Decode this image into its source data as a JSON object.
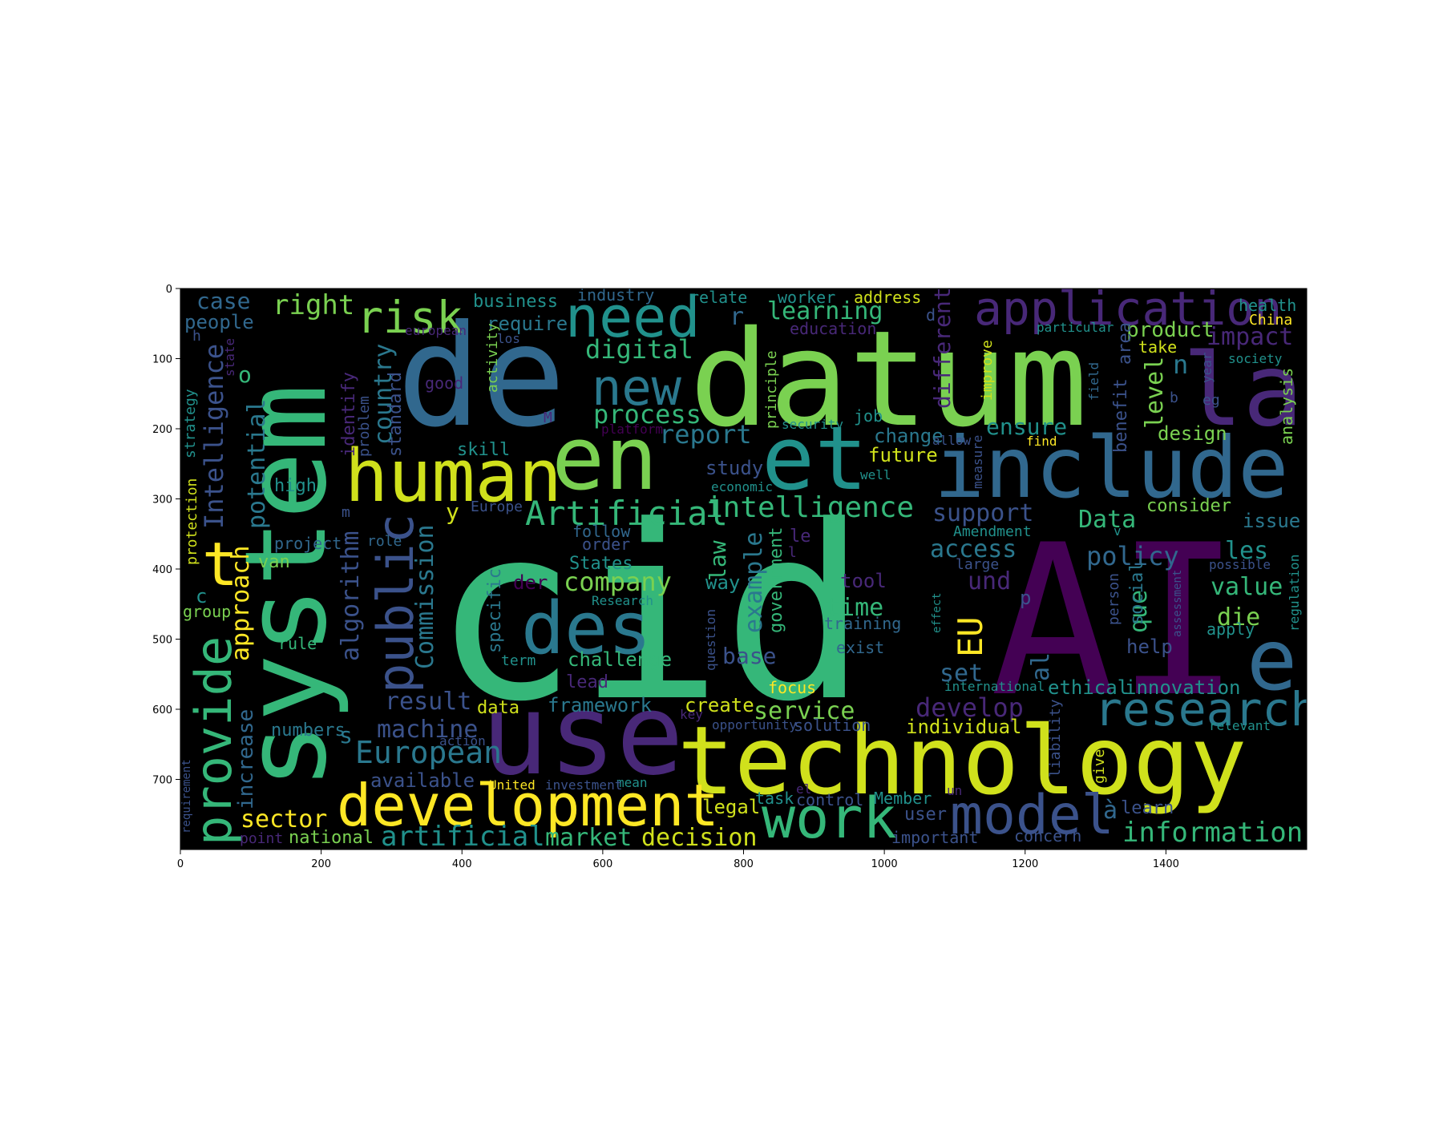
{
  "image": {
    "x_ticks": [
      "0",
      "200",
      "400",
      "600",
      "800",
      "1000",
      "1200",
      "1400"
    ],
    "y_ticks": [
      "0",
      "100",
      "200",
      "300",
      "400",
      "500",
      "600",
      "700"
    ],
    "background": "#000000",
    "palette": "viridis"
  },
  "words": [
    {
      "text": "cid",
      "color": "#35b779"
    },
    {
      "text": "AI",
      "color": "#440154"
    },
    {
      "text": "system",
      "color": "#35b779"
    },
    {
      "text": "de",
      "color": "#31688e"
    },
    {
      "text": "datum",
      "color": "#7ad151"
    },
    {
      "text": "use",
      "color": "#482878"
    },
    {
      "text": "technology",
      "color": "#d0e11c"
    },
    {
      "text": "en",
      "color": "#7ad151"
    },
    {
      "text": "et",
      "color": "#21918c"
    },
    {
      "text": "include",
      "color": "#31688e"
    },
    {
      "text": "human",
      "color": "#d0e11c"
    },
    {
      "text": "la",
      "color": "#482878"
    },
    {
      "text": "e",
      "color": "#31688e"
    },
    {
      "text": "development",
      "color": "#fde725"
    },
    {
      "text": "need",
      "color": "#21918c"
    },
    {
      "text": "application",
      "color": "#482878"
    },
    {
      "text": "new",
      "color": "#2a788e"
    },
    {
      "text": "work",
      "color": "#35b779"
    },
    {
      "text": "model",
      "color": "#3b528b"
    },
    {
      "text": "research",
      "color": "#2a788e"
    },
    {
      "text": "des",
      "color": "#2a788e"
    },
    {
      "text": "public",
      "color": "#3b528b"
    },
    {
      "text": "provide",
      "color": "#35b779"
    },
    {
      "text": "risk",
      "color": "#7ad151"
    },
    {
      "text": "EU",
      "color": "#fde725"
    },
    {
      "text": "Artificial",
      "color": "#35b779"
    },
    {
      "text": "intelligence",
      "color": "#35b779"
    },
    {
      "text": "European",
      "color": "#2a788e"
    },
    {
      "text": "artificial",
      "color": "#21918c"
    },
    {
      "text": "information",
      "color": "#35b779"
    },
    {
      "text": "Intelligence",
      "color": "#3b528b"
    },
    {
      "text": "right",
      "color": "#7ad151"
    },
    {
      "text": "digital",
      "color": "#35b779"
    },
    {
      "text": "process",
      "color": "#35b779"
    },
    {
      "text": "report",
      "color": "#2a788e"
    },
    {
      "text": "country",
      "color": "#2a788e"
    },
    {
      "text": "potential",
      "color": "#2a788e"
    },
    {
      "text": "approach",
      "color": "#fde725"
    },
    {
      "text": "algorithm",
      "color": "#3b528b"
    },
    {
      "text": "Commission",
      "color": "#2a788e"
    },
    {
      "text": "company",
      "color": "#7ad151"
    },
    {
      "text": "machine",
      "color": "#3b528b"
    },
    {
      "text": "sector",
      "color": "#fde725"
    },
    {
      "text": "market",
      "color": "#35b779"
    },
    {
      "text": "decision",
      "color": "#d0e11c"
    },
    {
      "text": "service",
      "color": "#7ad151"
    },
    {
      "text": "example",
      "color": "#2a788e"
    },
    {
      "text": "law",
      "color": "#35b779"
    },
    {
      "text": "develop",
      "color": "#482878"
    },
    {
      "text": "support",
      "color": "#3b528b"
    },
    {
      "text": "access",
      "color": "#2a788e"
    },
    {
      "text": "policy",
      "color": "#31688e"
    },
    {
      "text": "Data",
      "color": "#35b779"
    },
    {
      "text": "value",
      "color": "#35b779"
    },
    {
      "text": "ensure",
      "color": "#21918c"
    },
    {
      "text": "level",
      "color": "#7ad151"
    },
    {
      "text": "impact",
      "color": "#482878"
    },
    {
      "text": "product",
      "color": "#7ad151"
    },
    {
      "text": "different",
      "color": "#482878"
    },
    {
      "text": "learning",
      "color": "#35b779"
    },
    {
      "text": "case",
      "color": "#31688e"
    },
    {
      "text": "people",
      "color": "#31688e"
    },
    {
      "text": "business",
      "color": "#21918c"
    },
    {
      "text": "require",
      "color": "#2a788e"
    },
    {
      "text": "industry",
      "color": "#31688e"
    },
    {
      "text": "relate",
      "color": "#21918c"
    },
    {
      "text": "worker",
      "color": "#21918c"
    },
    {
      "text": "address",
      "color": "#d0e11c"
    },
    {
      "text": "health",
      "color": "#21918c"
    },
    {
      "text": "China",
      "color": "#fde725"
    },
    {
      "text": "result",
      "color": "#3b528b"
    },
    {
      "text": "data",
      "color": "#d0e11c"
    },
    {
      "text": "framework",
      "color": "#2a788e"
    },
    {
      "text": "create",
      "color": "#d0e11c"
    },
    {
      "text": "available",
      "color": "#3b528b"
    },
    {
      "text": "increase",
      "color": "#31688e"
    },
    {
      "text": "numbers",
      "color": "#2a788e"
    },
    {
      "text": "national",
      "color": "#7ad151"
    },
    {
      "text": "legal",
      "color": "#d0e11c"
    },
    {
      "text": "individual",
      "color": "#d0e11c"
    },
    {
      "text": "innovation",
      "color": "#21918c"
    },
    {
      "text": "ethical",
      "color": "#21918c"
    },
    {
      "text": "time",
      "color": "#35b779"
    },
    {
      "text": "base",
      "color": "#3b528b"
    },
    {
      "text": "challenge",
      "color": "#35b779"
    },
    {
      "text": "future",
      "color": "#d0e11c"
    },
    {
      "text": "design",
      "color": "#7ad151"
    },
    {
      "text": "study",
      "color": "#3b528b"
    },
    {
      "text": "change",
      "color": "#2a788e"
    },
    {
      "text": "les",
      "color": "#21918c"
    },
    {
      "text": "und",
      "color": "#482878"
    },
    {
      "text": "die",
      "color": "#7ad151"
    },
    {
      "text": "que",
      "color": "#35b779"
    },
    {
      "text": "issue",
      "color": "#2a788e"
    },
    {
      "text": "consider",
      "color": "#7ad151"
    },
    {
      "text": "analysis",
      "color": "#7ad151"
    },
    {
      "text": "benefit",
      "color": "#3b528b"
    },
    {
      "text": "area",
      "color": "#3b528b"
    },
    {
      "text": "skill",
      "color": "#21918c"
    },
    {
      "text": "high",
      "color": "#21918c"
    },
    {
      "text": "specific",
      "color": "#2a788e"
    },
    {
      "text": "van",
      "color": "#7ad151"
    },
    {
      "text": "States",
      "color": "#21918c"
    },
    {
      "text": "way",
      "color": "#21918c"
    },
    {
      "text": "government",
      "color": "#35b779"
    },
    {
      "text": "set",
      "color": "#31688e"
    },
    {
      "text": "help",
      "color": "#3b528b"
    },
    {
      "text": "learn",
      "color": "#3b528b"
    },
    {
      "text": "task",
      "color": "#21918c"
    },
    {
      "text": "user",
      "color": "#3b528b"
    },
    {
      "text": "control",
      "color": "#3b528b"
    },
    {
      "text": "Member",
      "color": "#21918c"
    },
    {
      "text": "important",
      "color": "#3b528b"
    },
    {
      "text": "concern",
      "color": "#3b528b"
    },
    {
      "text": "solution",
      "color": "#3b528b"
    },
    {
      "text": "focus",
      "color": "#fde725"
    },
    {
      "text": "lead",
      "color": "#482878"
    },
    {
      "text": "term",
      "color": "#21918c"
    },
    {
      "text": "der",
      "color": "#440154"
    },
    {
      "text": "tool",
      "color": "#482878"
    },
    {
      "text": "training",
      "color": "#31688e"
    },
    {
      "text": "exist",
      "color": "#31688e"
    },
    {
      "text": "social",
      "color": "#2a788e"
    },
    {
      "text": "person",
      "color": "#3b528b"
    },
    {
      "text": "apply",
      "color": "#21918c"
    },
    {
      "text": "regulation",
      "color": "#21918c"
    },
    {
      "text": "international",
      "color": "#21918c"
    },
    {
      "text": "liability",
      "color": "#3b528b"
    },
    {
      "text": "give",
      "color": "#d0e11c"
    },
    {
      "text": "standard",
      "color": "#3b528b"
    },
    {
      "text": "identify",
      "color": "#482878"
    },
    {
      "text": "problem",
      "color": "#3b528b"
    },
    {
      "text": "strategy",
      "color": "#21918c"
    },
    {
      "text": "protection",
      "color": "#d0e11c"
    },
    {
      "text": "requirement",
      "color": "#3b528b"
    },
    {
      "text": "project",
      "color": "#31688e"
    },
    {
      "text": "role",
      "color": "#31688e"
    },
    {
      "text": "rule",
      "color": "#35b779"
    },
    {
      "text": "group",
      "color": "#7ad151"
    },
    {
      "text": "point",
      "color": "#482878"
    },
    {
      "text": "action",
      "color": "#3b528b"
    },
    {
      "text": "key",
      "color": "#482878"
    },
    {
      "text": "opportunity",
      "color": "#3b528b"
    },
    {
      "text": "mean",
      "color": "#21918c"
    },
    {
      "text": "investment",
      "color": "#3b528b"
    },
    {
      "text": "United",
      "color": "#fde725"
    },
    {
      "text": "Europe",
      "color": "#3b528b"
    },
    {
      "text": "order",
      "color": "#3b528b"
    },
    {
      "text": "follow",
      "color": "#31688e"
    },
    {
      "text": "Research",
      "color": "#21918c"
    },
    {
      "text": "question",
      "color": "#3b528b"
    },
    {
      "text": "Amendment",
      "color": "#21918c"
    },
    {
      "text": "large",
      "color": "#3b528b"
    },
    {
      "text": "possible",
      "color": "#3b528b"
    },
    {
      "text": "assessment",
      "color": "#3b528b"
    },
    {
      "text": "effect",
      "color": "#21918c"
    },
    {
      "text": "measure",
      "color": "#3b528b"
    },
    {
      "text": "allow",
      "color": "#3b528b"
    },
    {
      "text": "find",
      "color": "#fde725"
    },
    {
      "text": "well",
      "color": "#21918c"
    },
    {
      "text": "economic",
      "color": "#21918c"
    },
    {
      "text": "security",
      "color": "#21918c"
    },
    {
      "text": "job",
      "color": "#21918c"
    },
    {
      "text": "platform",
      "color": "#440154"
    },
    {
      "text": "principle",
      "color": "#7ad151"
    },
    {
      "text": "improve",
      "color": "#d0e11c"
    },
    {
      "text": "education",
      "color": "#482878"
    },
    {
      "text": "activity",
      "color": "#7ad151"
    },
    {
      "text": "good",
      "color": "#482878"
    },
    {
      "text": "los",
      "color": "#3b528b"
    },
    {
      "text": "european",
      "color": "#482878"
    },
    {
      "text": "state",
      "color": "#482878"
    },
    {
      "text": "particular",
      "color": "#21918c"
    },
    {
      "text": "take",
      "color": "#d0e11c"
    },
    {
      "text": "society",
      "color": "#21918c"
    },
    {
      "text": "year",
      "color": "#3b528b"
    },
    {
      "text": "field",
      "color": "#31688e"
    },
    {
      "text": "relevant",
      "color": "#21918c"
    },
    {
      "text": "un",
      "color": "#482878"
    },
    {
      "text": "M",
      "color": "#482878"
    },
    {
      "text": "t",
      "color": "#fde725"
    },
    {
      "text": "o",
      "color": "#35b779"
    },
    {
      "text": "r",
      "color": "#31688e"
    },
    {
      "text": "n",
      "color": "#2a788e"
    },
    {
      "text": "y",
      "color": "#d0e11c"
    },
    {
      "text": "s",
      "color": "#2a788e"
    },
    {
      "text": "c",
      "color": "#21918c"
    },
    {
      "text": "h",
      "color": "#3b528b"
    },
    {
      "text": "m",
      "color": "#3b528b"
    },
    {
      "text": "d",
      "color": "#3b528b"
    },
    {
      "text": "p",
      "color": "#3b528b"
    },
    {
      "text": "b",
      "color": "#3b528b"
    },
    {
      "text": "eg",
      "color": "#3b528b"
    },
    {
      "text": "v",
      "color": "#21918c"
    },
    {
      "text": "al",
      "color": "#31688e"
    },
    {
      "text": "à",
      "color": "#31688e"
    },
    {
      "text": "le",
      "color": "#482878"
    },
    {
      "text": "l",
      "color": "#482878"
    },
    {
      "text": "el",
      "color": "#482878"
    }
  ]
}
